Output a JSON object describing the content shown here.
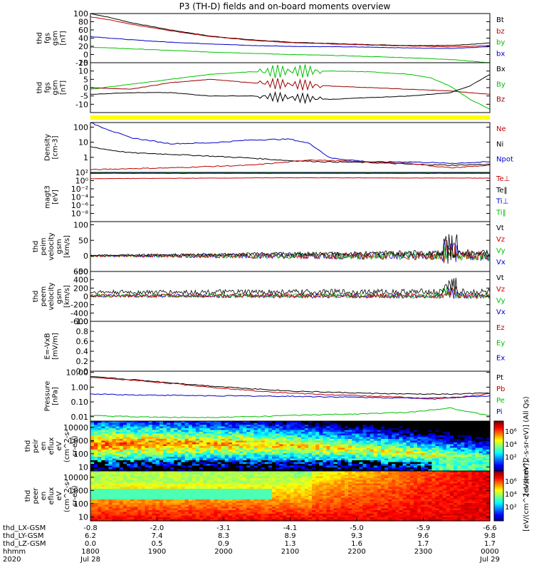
{
  "title": "P3 (TH-D) fields and on-board moments overview",
  "colors": {
    "black": "#000000",
    "red": "#c00000",
    "green": "#00c000",
    "blue": "#0000cc",
    "yellow": "#ffff00",
    "darkred": "#990000"
  },
  "chart_data": [
    {
      "type": "line",
      "name": "fgs_gsm",
      "ylabel_lines": [
        "thd",
        "fgs",
        "gsm",
        "[nT]"
      ],
      "ylim": [
        -20,
        100
      ],
      "yticks": [
        "100",
        "80",
        "60",
        "40",
        "20",
        "0",
        "-20"
      ],
      "ytick_vals": [
        100,
        80,
        60,
        40,
        20,
        0,
        -20
      ],
      "legend": [
        {
          "label": "Bt",
          "color": "#000000"
        },
        {
          "label": "bz",
          "color": "#c00000"
        },
        {
          "label": "by",
          "color": "#00c000"
        },
        {
          "label": "bx",
          "color": "#0000cc"
        }
      ],
      "series": [
        {
          "color": "#000000",
          "x": [
            0,
            0.05,
            0.1,
            0.2,
            0.3,
            0.4,
            0.5,
            0.6,
            0.7,
            0.8,
            0.9,
            0.95,
            1.0
          ],
          "y": [
            100,
            90,
            78,
            60,
            45,
            36,
            30,
            27,
            24,
            22,
            22,
            25,
            28
          ]
        },
        {
          "color": "#c00000",
          "x": [
            0,
            0.05,
            0.1,
            0.2,
            0.3,
            0.4,
            0.5,
            0.6,
            0.7,
            0.8,
            0.9,
            0.95,
            1.0
          ],
          "y": [
            92,
            84,
            74,
            58,
            44,
            35,
            29,
            26,
            23,
            21,
            19,
            20,
            22
          ]
        },
        {
          "color": "#0000cc",
          "x": [
            0,
            0.1,
            0.2,
            0.3,
            0.4,
            0.5,
            0.6,
            0.7,
            0.8,
            0.9,
            0.95,
            1.0
          ],
          "y": [
            44,
            36,
            30,
            26,
            22,
            20,
            19,
            18,
            16,
            15,
            17,
            19
          ]
        },
        {
          "color": "#00c000",
          "x": [
            0,
            0.1,
            0.2,
            0.3,
            0.4,
            0.5,
            0.6,
            0.7,
            0.8,
            0.9,
            0.95,
            1.0
          ],
          "y": [
            18,
            14,
            10,
            6,
            3,
            0,
            -2,
            -5,
            -8,
            -12,
            -16,
            -20
          ]
        }
      ]
    },
    {
      "type": "line",
      "name": "fgs_gsm_detrended",
      "ylabel_lines": [
        "thd",
        "fgs",
        "gsm",
        "[nT]"
      ],
      "ylim": [
        -15,
        15
      ],
      "yticks": [
        "15",
        "10",
        "5",
        "0",
        "-5",
        "-10"
      ],
      "ytick_vals": [
        15,
        10,
        5,
        0,
        -5,
        -10
      ],
      "legend": [
        {
          "label": "Bx",
          "color": "#000000"
        },
        {
          "label": "By",
          "color": "#00c000"
        },
        {
          "label": "Bz",
          "color": "#990000"
        }
      ],
      "series": [
        {
          "color": "#00c000",
          "x": [
            0,
            0.1,
            0.2,
            0.3,
            0.4,
            0.5,
            0.6,
            0.7,
            0.8,
            0.85,
            0.9,
            0.95,
            1.0
          ],
          "y": [
            -1,
            2,
            5,
            8,
            9.5,
            10,
            10,
            9.5,
            8,
            6,
            1,
            -7,
            -13
          ]
        },
        {
          "color": "#990000",
          "x": [
            0,
            0.1,
            0.2,
            0.3,
            0.4,
            0.5,
            0.6,
            0.7,
            0.8,
            0.9,
            0.95,
            1.0
          ],
          "y": [
            0,
            -1,
            3,
            5,
            3,
            2,
            1,
            0,
            -1,
            -2,
            -3,
            -4
          ]
        },
        {
          "color": "#000000",
          "x": [
            0,
            0.1,
            0.2,
            0.3,
            0.4,
            0.5,
            0.6,
            0.7,
            0.8,
            0.9,
            0.95,
            1.0
          ],
          "y": [
            -4,
            -3,
            -3,
            -5,
            -5,
            -6,
            -7,
            -6,
            -5,
            -3,
            1,
            8
          ]
        }
      ],
      "oscillation": {
        "x0": 0.42,
        "x1": 0.58,
        "amp": 4,
        "periods": 14
      }
    },
    {
      "type": "line",
      "name": "density",
      "ylabel_lines": [
        "Density",
        "[cm-3]"
      ],
      "log": true,
      "ylim": [
        0.1,
        200
      ],
      "yticks": [
        "100",
        "10",
        "1"
      ],
      "ytick_vals": [
        100,
        10,
        1
      ],
      "legend": [
        {
          "label": "Ne",
          "color": "#c00000"
        },
        {
          "label": "Ni",
          "color": "#000000"
        },
        {
          "label": "Npot",
          "color": "#0000cc"
        }
      ],
      "series": [
        {
          "color": "#0000cc",
          "x": [
            0,
            0.05,
            0.1,
            0.2,
            0.3,
            0.4,
            0.5,
            0.55,
            0.6,
            0.7,
            0.8,
            0.9,
            1.0
          ],
          "y": [
            200,
            60,
            20,
            8,
            9,
            14,
            16,
            8,
            0.9,
            0.5,
            0.5,
            0.4,
            0.5
          ]
        },
        {
          "color": "#000000",
          "x": [
            0,
            0.05,
            0.1,
            0.2,
            0.3,
            0.4,
            0.5,
            0.6,
            0.7,
            0.8,
            0.9,
            1.0
          ],
          "y": [
            5,
            3,
            2,
            1.6,
            1.2,
            0.9,
            0.6,
            0.5,
            0.45,
            0.35,
            0.3,
            0.35
          ]
        },
        {
          "color": "#c00000",
          "x": [
            0,
            0.1,
            0.2,
            0.3,
            0.4,
            0.5,
            0.55,
            0.6,
            0.7,
            0.8,
            0.9,
            1.0
          ],
          "y": [
            0.15,
            0.18,
            0.2,
            0.25,
            0.3,
            0.5,
            0.7,
            0.6,
            0.5,
            0.4,
            0.2,
            0.3
          ]
        }
      ]
    },
    {
      "type": "line",
      "name": "temperature",
      "ylabel_lines": [
        "magt3",
        "[eV]"
      ],
      "log": true,
      "ylim": [
        1e-10,
        100
      ],
      "yticks": [
        "10²",
        "10⁰",
        "10⁻²",
        "10⁻⁴",
        "10⁻⁶",
        "10⁻⁸"
      ],
      "ytick_vals": [
        100,
        1,
        0.01,
        0.0001,
        1e-06,
        1e-08
      ],
      "legend": [
        {
          "label": "Te⊥",
          "color": "#c00000"
        },
        {
          "label": "Te‖",
          "color": "#000000"
        },
        {
          "label": "Ti⊥",
          "color": "#0000cc"
        },
        {
          "label": "Ti‖",
          "color": "#00c000"
        }
      ],
      "series": [
        {
          "color": "#000000",
          "x": [
            0,
            1
          ],
          "y": [
            80,
            80
          ]
        },
        {
          "color": "#00c000",
          "x": [
            0,
            1
          ],
          "y": [
            70,
            70
          ]
        },
        {
          "color": "#0000cc",
          "x": [
            0,
            1
          ],
          "y": [
            60,
            60
          ]
        },
        {
          "color": "#c00000",
          "x": [
            0,
            0.5,
            1
          ],
          "y": [
            3,
            5,
            4
          ]
        }
      ]
    },
    {
      "type": "line",
      "name": "peim_velocity",
      "ylabel_lines": [
        "thd",
        "peim",
        "velocity",
        "gsm",
        "[km/s]"
      ],
      "ylim": [
        -50,
        110
      ],
      "yticks": [
        "100",
        "50",
        "0",
        "-50"
      ],
      "ytick_vals": [
        100,
        50,
        0,
        -50
      ],
      "legend": [
        {
          "label": "Vt",
          "color": "#000000"
        },
        {
          "label": "Vz",
          "color": "#c00000"
        },
        {
          "label": "Vy",
          "color": "#00c000"
        },
        {
          "label": "Vx",
          "color": "#0000cc"
        }
      ],
      "noise": {
        "base": 0,
        "amp_start": 6,
        "amp_end": 35,
        "spike": 95
      }
    },
    {
      "type": "line",
      "name": "peem_velocity",
      "ylabel_lines": [
        "thd",
        "peem",
        "velocity",
        "gsm",
        "[km/s]"
      ],
      "ylim": [
        -600,
        600
      ],
      "yticks": [
        "600",
        "400",
        "200",
        "0",
        "-200",
        "-400",
        "-600"
      ],
      "ytick_vals": [
        600,
        400,
        200,
        0,
        -200,
        -400,
        -600
      ],
      "legend": [
        {
          "label": "Vt",
          "color": "#000000"
        },
        {
          "label": "Vz",
          "color": "#c00000"
        },
        {
          "label": "Vy",
          "color": "#00c000"
        },
        {
          "label": "Vx",
          "color": "#0000cc"
        }
      ],
      "noise": {
        "base": 50,
        "amp_start": 80,
        "amp_end": 150,
        "spike": 550
      }
    },
    {
      "type": "line",
      "name": "efield",
      "ylabel_lines": [
        "E=-VxB",
        "[mV/m]"
      ],
      "ylim": [
        0,
        1
      ],
      "yticks": [
        "1.0",
        "0.8",
        "0.6",
        "0.4",
        "0.2",
        "0.0"
      ],
      "ytick_vals": [
        1,
        0.8,
        0.6,
        0.4,
        0.2,
        0
      ],
      "legend": [
        {
          "label": "Ez",
          "color": "#c00000"
        },
        {
          "label": "Ey",
          "color": "#00c000"
        },
        {
          "label": "Ex",
          "color": "#0000cc"
        }
      ],
      "series": []
    },
    {
      "type": "line",
      "name": "pressure",
      "ylabel_lines": [
        "Pressure",
        "[nPa]"
      ],
      "log": true,
      "ylim": [
        0.005,
        12
      ],
      "yticks": [
        "10.00",
        "1.00",
        "0.10",
        "0.01"
      ],
      "ytick_vals": [
        10,
        1,
        0.1,
        0.01
      ],
      "legend": [
        {
          "label": "Pt",
          "color": "#000000"
        },
        {
          "label": "Pb",
          "color": "#c00000"
        },
        {
          "label": "Pe",
          "color": "#00c000"
        },
        {
          "label": "Pi",
          "color": "#0000cc"
        }
      ],
      "series": [
        {
          "color": "#000000",
          "x": [
            0,
            0.1,
            0.2,
            0.3,
            0.4,
            0.5,
            0.6,
            0.7,
            0.8,
            0.9,
            1.0
          ],
          "y": [
            5,
            3.3,
            2,
            1.2,
            0.8,
            0.55,
            0.45,
            0.38,
            0.34,
            0.33,
            0.4
          ]
        },
        {
          "color": "#c00000",
          "x": [
            0,
            0.1,
            0.2,
            0.3,
            0.4,
            0.5,
            0.6,
            0.7,
            0.8,
            0.85,
            0.9,
            1.0
          ],
          "y": [
            4.5,
            3,
            1.8,
            1,
            0.6,
            0.4,
            0.3,
            0.25,
            0.2,
            0.15,
            0.18,
            0.35
          ]
        },
        {
          "color": "#0000cc",
          "x": [
            0,
            0.1,
            0.2,
            0.3,
            0.4,
            0.5,
            0.6,
            0.7,
            0.8,
            0.9,
            1.0
          ],
          "y": [
            0.35,
            0.3,
            0.28,
            0.26,
            0.25,
            0.24,
            0.22,
            0.2,
            0.18,
            0.2,
            0.25
          ]
        },
        {
          "color": "#00c000",
          "x": [
            0,
            0.1,
            0.2,
            0.3,
            0.4,
            0.5,
            0.6,
            0.7,
            0.8,
            0.9,
            0.95,
            1.0
          ],
          "y": [
            0.012,
            0.01,
            0.009,
            0.009,
            0.01,
            0.012,
            0.014,
            0.016,
            0.02,
            0.04,
            0.02,
            0.012
          ]
        }
      ]
    },
    {
      "type": "heatmap",
      "name": "peir_en_eflux",
      "ylabel_lines": [
        "thd",
        "peir",
        "en",
        "eflux",
        "eV",
        "(cm^2-s-",
        "sr-eV)"
      ],
      "log": true,
      "ylim": [
        5,
        30000
      ],
      "yticks": [
        "10000",
        "1000",
        "100",
        "10"
      ],
      "ytick_vals": [
        10000,
        1000,
        100,
        10
      ],
      "kind": "ion"
    },
    {
      "type": "heatmap",
      "name": "peer_en_eflux",
      "ylabel_lines": [
        "thd",
        "peer",
        "en",
        "eflux",
        "eV",
        "(cm^2-s-",
        "sr-eV)"
      ],
      "log": true,
      "ylim": [
        5,
        30000
      ],
      "yticks": [
        "10000",
        "1000",
        "100",
        "10"
      ],
      "ytick_vals": [
        10000,
        1000,
        100,
        10
      ],
      "kind": "electron"
    }
  ],
  "colorbars": [
    {
      "ticks": [
        "10⁶",
        "10⁴",
        "10²"
      ],
      "label": "[eV/(cm^2-s-sr-eV)] (All Qs)"
    },
    {
      "ticks": [
        "10⁶",
        "10⁴",
        "10²"
      ],
      "label": "[eV/(cm^2-s-sr-eV)]"
    }
  ],
  "xaxis": {
    "row_labels": [
      "thd_LX-GSM",
      "thd_LY-GSM",
      "thd_LZ-GSM",
      "hhmm",
      "2020"
    ],
    "ticks": [
      {
        "f": 0.0,
        "vals": [
          "-0.8",
          "6.2",
          "0.0",
          "1800",
          "Jul 28"
        ]
      },
      {
        "f": 0.1667,
        "vals": [
          "-2.0",
          "7.4",
          "0.5",
          "1900",
          ""
        ]
      },
      {
        "f": 0.3333,
        "vals": [
          "-3.1",
          "8.3",
          "0.9",
          "2000",
          ""
        ]
      },
      {
        "f": 0.5,
        "vals": [
          "-4.1",
          "8.9",
          "1.3",
          "2100",
          ""
        ]
      },
      {
        "f": 0.6667,
        "vals": [
          "-5.0",
          "9.3",
          "1.6",
          "2200",
          ""
        ]
      },
      {
        "f": 0.8333,
        "vals": [
          "-5.9",
          "9.6",
          "1.7",
          "2300",
          ""
        ]
      },
      {
        "f": 1.0,
        "vals": [
          "-6.6",
          "9.8",
          "1.7",
          "0000",
          "Jul 29"
        ]
      }
    ]
  }
}
